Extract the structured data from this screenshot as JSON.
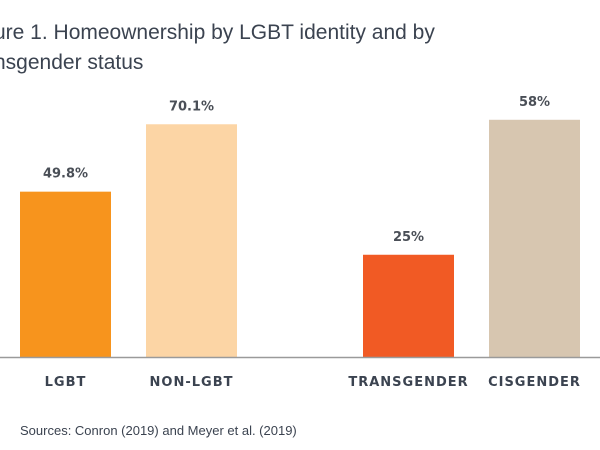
{
  "chart_data": {
    "type": "bar",
    "title_lines": [
      "ure 1. Homeownership by LGBT identity and by",
      "nsgender status"
    ],
    "categories": [
      "LGBT",
      "NON-LGBT",
      "TRANSGENDER",
      "CISGENDER"
    ],
    "values": [
      49.8,
      70.1,
      25,
      58
    ],
    "data_labels": [
      "49.8%",
      "70.1%",
      "25%",
      "58%"
    ],
    "colors": [
      "#F7941D",
      "#FCD5A5",
      "#F15A24",
      "#D7C6B0"
    ],
    "groups": [
      [
        "LGBT",
        "NON-LGBT"
      ],
      [
        "TRANSGENDER",
        "CISGENDER"
      ]
    ],
    "xlabel": "",
    "ylabel": "",
    "grid": false,
    "source": "Sources: Conron (2019) and Meyer et al. (2019)"
  }
}
